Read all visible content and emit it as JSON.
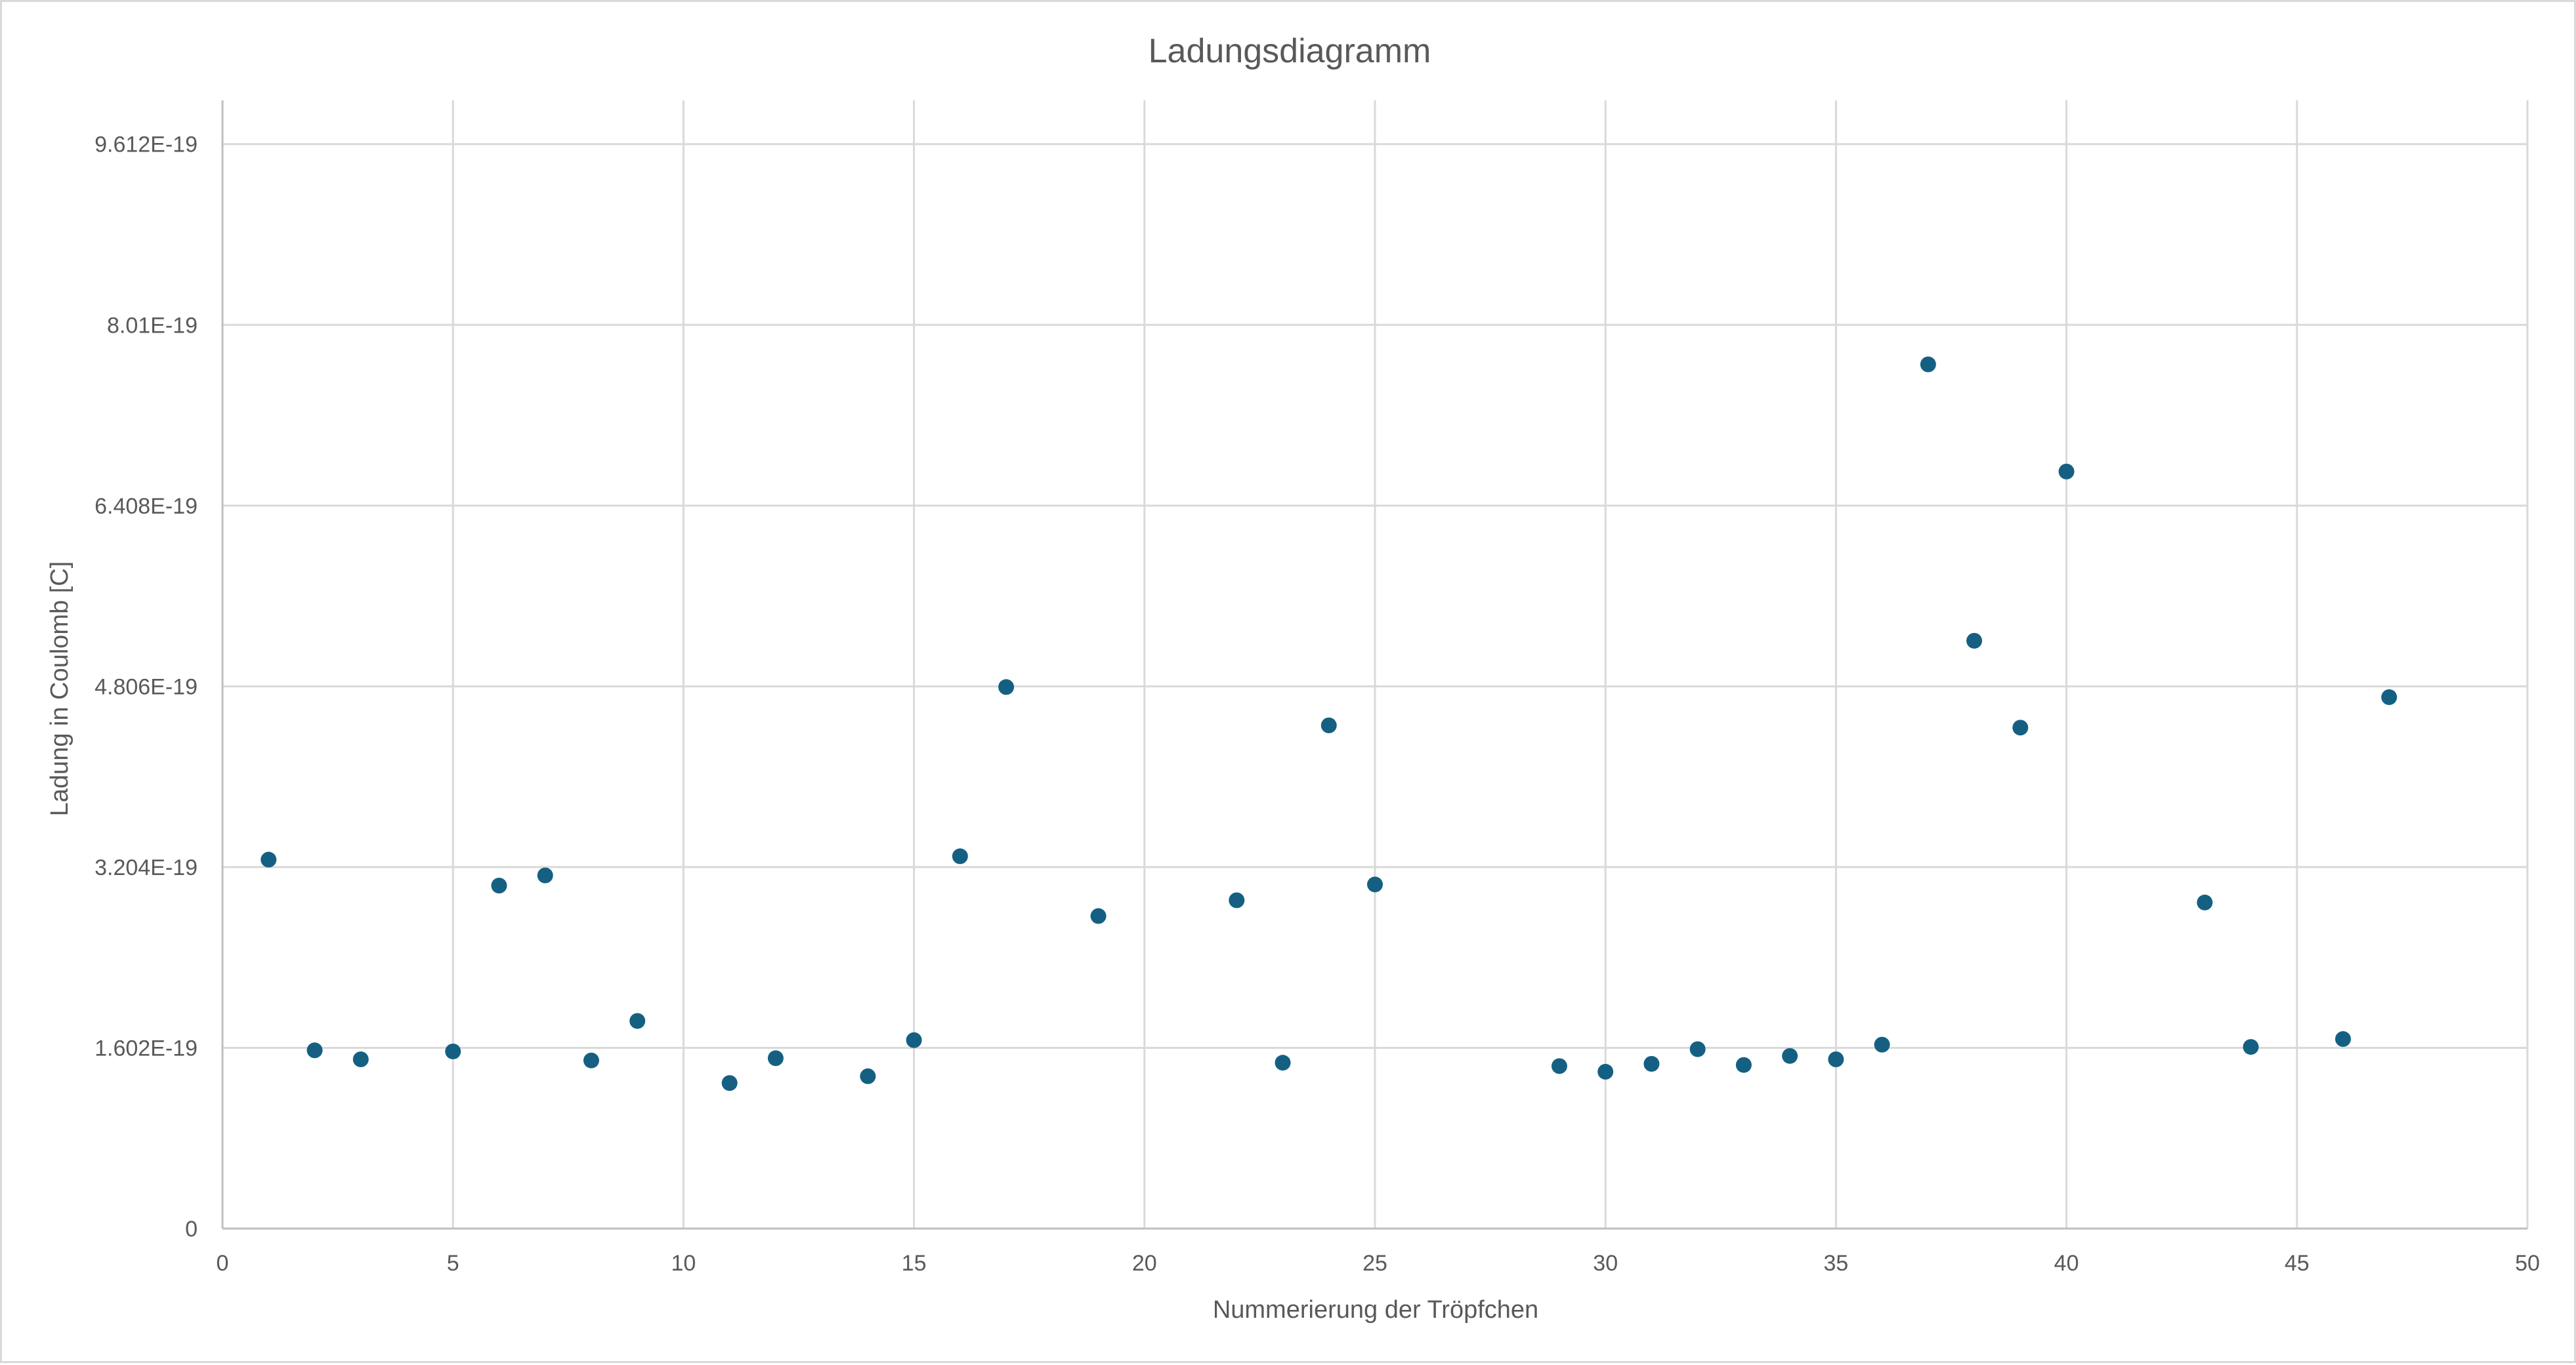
{
  "chart_data": {
    "type": "scatter",
    "title": "Ladungsdiagramm",
    "xlabel": "Nummerierung der Tröpfchen",
    "ylabel": "Ladung in Coulomb [C]",
    "xlim": [
      0,
      50
    ],
    "ylim": [
      0,
      1e-18
    ],
    "x_ticks": [
      0,
      5,
      10,
      15,
      20,
      25,
      30,
      35,
      40,
      45,
      50
    ],
    "x_tick_labels": [
      "0",
      "5",
      "10",
      "15",
      "20",
      "25",
      "30",
      "35",
      "40",
      "45",
      "50"
    ],
    "y_ticks": [
      0,
      1.602e-19,
      3.204e-19,
      4.806e-19,
      6.408e-19,
      8.01e-19,
      9.612e-19
    ],
    "y_tick_labels": [
      "0",
      "1.602E-19",
      "3.204E-19",
      "4.806E-19",
      "6.408E-19",
      "8.01E-19",
      "9.612E-19"
    ],
    "grid": true,
    "legend": "none",
    "series_color": "#156082",
    "series": [
      {
        "x": [
          1,
          2,
          3,
          5,
          6,
          7,
          8,
          9,
          11,
          12,
          14,
          15,
          16,
          17,
          19,
          22,
          23,
          24,
          25,
          29,
          30,
          31,
          32,
          33,
          34,
          35,
          36,
          37,
          38,
          39,
          40,
          43,
          44,
          46,
          47
        ],
        "y": [
          3.27e-19,
          1.58e-19,
          1.5e-19,
          1.57e-19,
          3.04e-19,
          3.13e-19,
          1.49e-19,
          1.84e-19,
          1.29e-19,
          1.51e-19,
          1.35e-19,
          1.67e-19,
          3.3e-19,
          4.8e-19,
          2.77e-19,
          2.91e-19,
          1.47e-19,
          4.46e-19,
          3.05e-19,
          1.44e-19,
          1.39e-19,
          1.46e-19,
          1.59e-19,
          1.45e-19,
          1.53e-19,
          1.5e-19,
          1.63e-19,
          7.66e-19,
          5.21e-19,
          4.44e-19,
          6.71e-19,
          2.89e-19,
          1.61e-19,
          1.68e-19,
          4.71e-19
        ]
      }
    ]
  }
}
